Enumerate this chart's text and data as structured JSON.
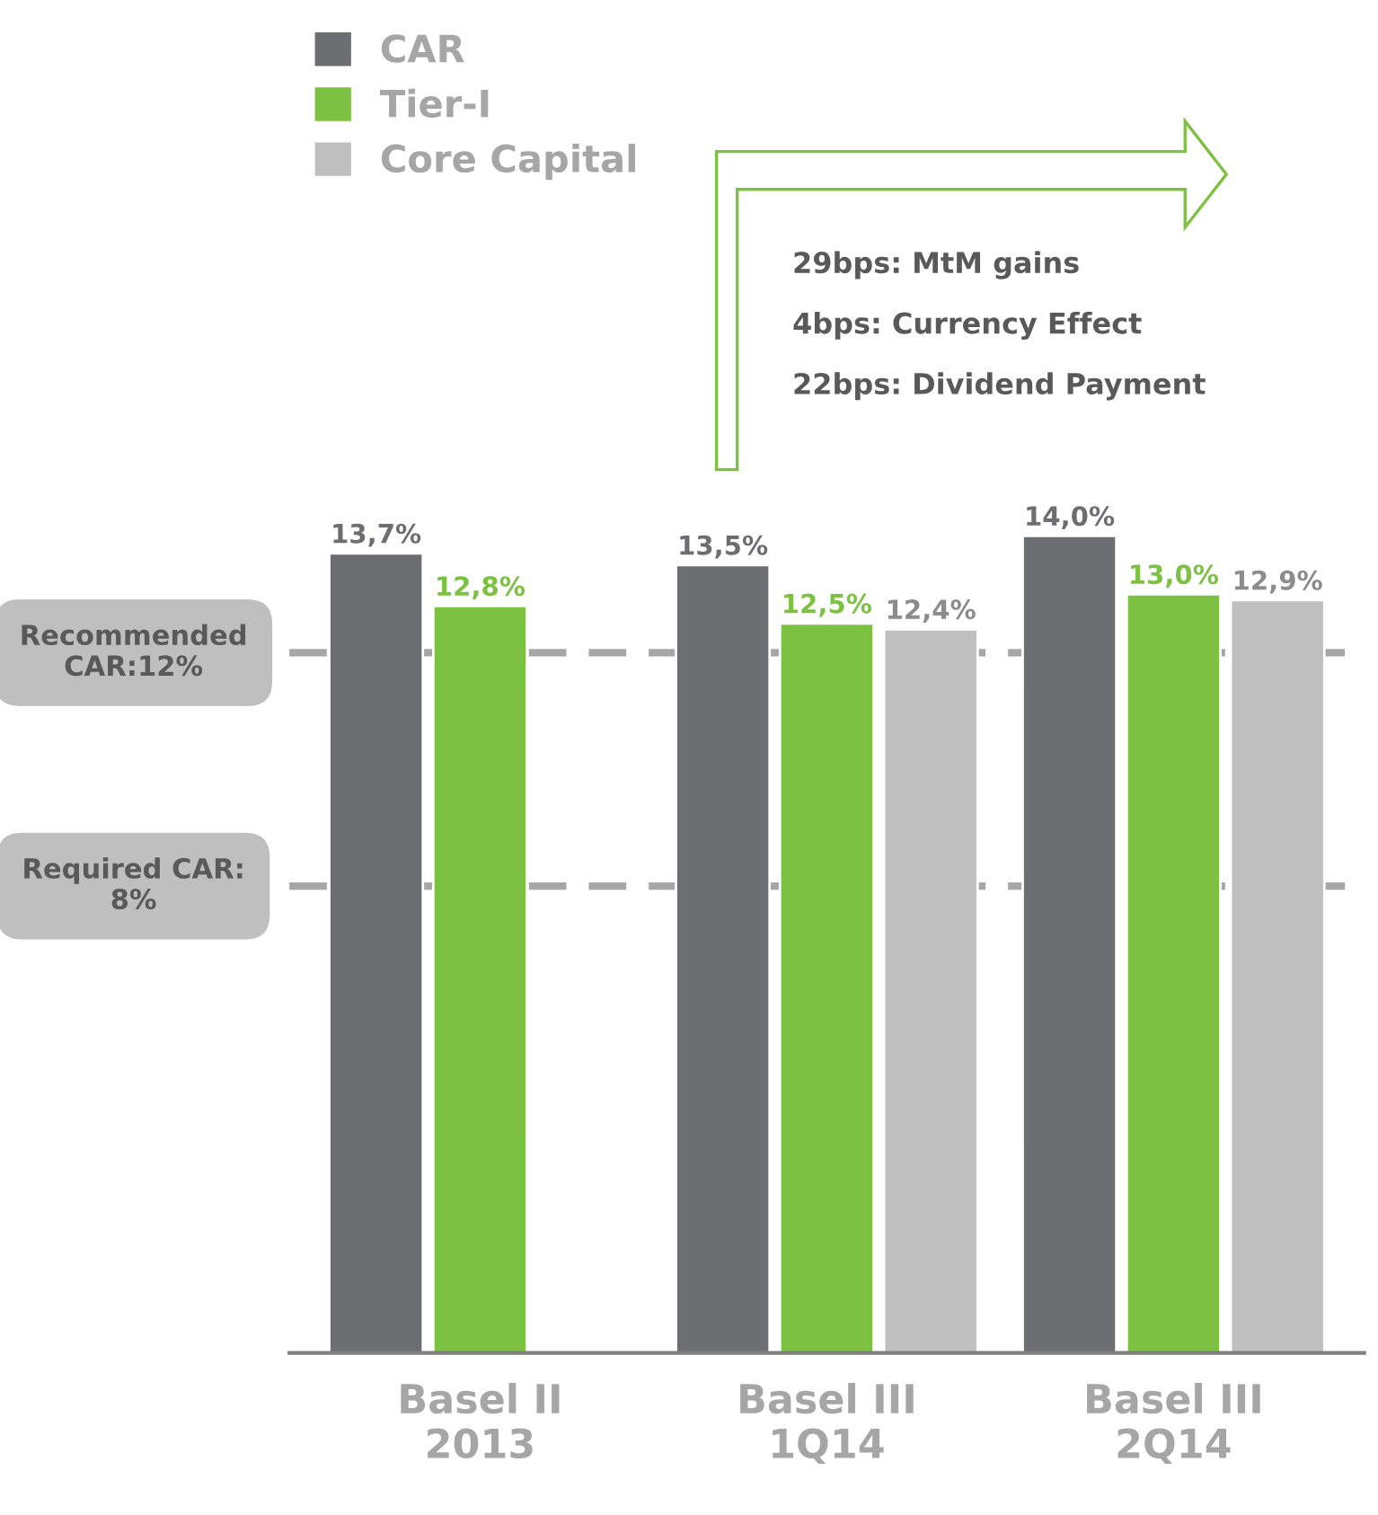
{
  "chart_data": {
    "type": "bar",
    "categories": [
      "Basel II\n2013",
      "Basel III\n1Q14",
      "Basel III\n2Q14"
    ],
    "series": [
      {
        "name": "CAR",
        "color": "#6d6e71",
        "values": [
          13.7,
          13.5,
          14.0
        ],
        "value_labels": [
          "13,7%",
          "13,5%",
          "14,0%"
        ]
      },
      {
        "name": "Tier-I",
        "color": "#7dc142",
        "values": [
          12.8,
          12.5,
          13.0
        ],
        "value_labels": [
          "12,8%",
          "12,5%",
          "13,0%"
        ]
      },
      {
        "name": "Core Capital",
        "color": "#bfbfbf",
        "values": [
          null,
          12.4,
          12.9
        ],
        "value_labels": [
          null,
          "12,4%",
          "12,9%"
        ]
      }
    ],
    "ref_lines": [
      {
        "axis": "y",
        "value": 12,
        "label": "Recommended\nCAR:12%",
        "color": "#a6a6a6",
        "line_style": "dashed"
      },
      {
        "axis": "y",
        "value": 8,
        "label": "Required CAR:\n8%",
        "color": "#a6a6a6",
        "line_style": "dashed"
      }
    ],
    "annotations": [
      "29bps: MtM gains",
      "4bps: Currency Effect",
      "22bps: Dividend Payment"
    ],
    "legend": "top left",
    "tick_labels": "x",
    "grid": false
  }
}
